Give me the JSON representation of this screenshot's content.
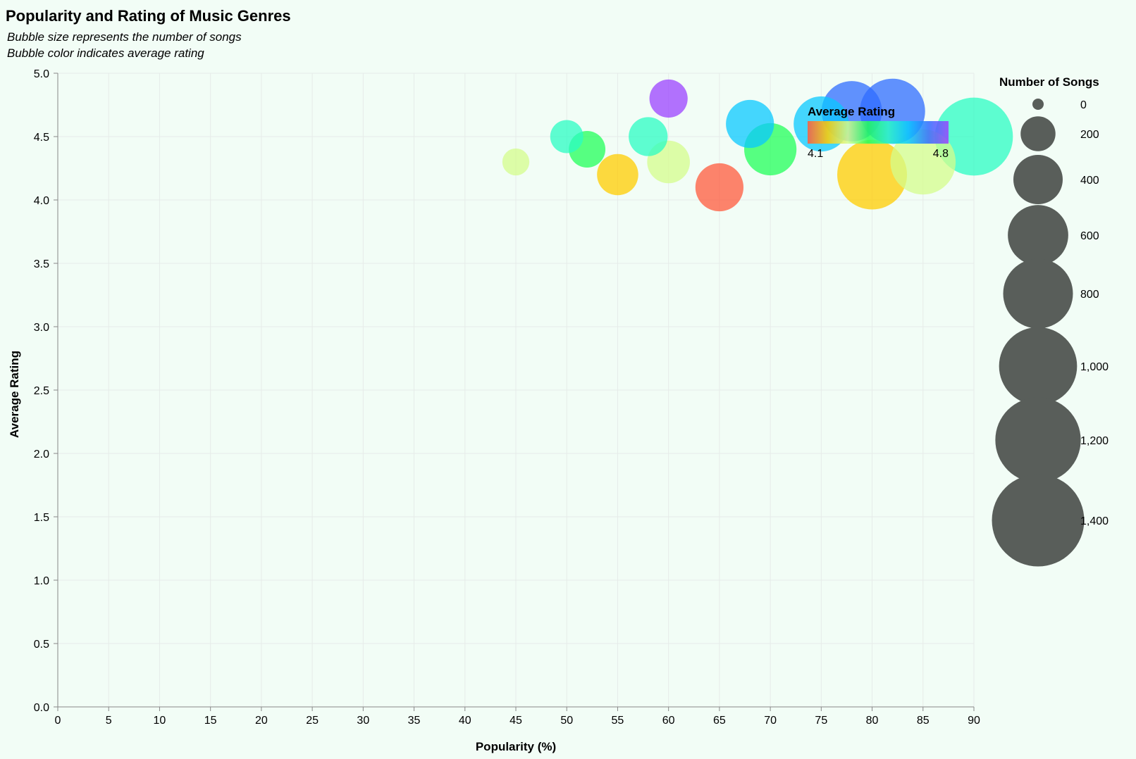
{
  "chart_data": {
    "type": "scatter",
    "title": "Popularity and Rating of Music Genres",
    "subtitle": [
      "Bubble size represents the number of songs",
      "Bubble color indicates average rating"
    ],
    "xlabel": "Popularity (%)",
    "ylabel": "Average Rating",
    "xlim": [
      0,
      90
    ],
    "ylim": [
      0,
      5.0
    ],
    "x_ticks": [
      "0",
      "5",
      "10",
      "15",
      "20",
      "25",
      "30",
      "35",
      "40",
      "45",
      "50",
      "55",
      "60",
      "65",
      "70",
      "75",
      "80",
      "85",
      "90"
    ],
    "y_ticks": [
      "0.0",
      "0.5",
      "1.0",
      "1.5",
      "2.0",
      "2.5",
      "3.0",
      "3.5",
      "4.0",
      "4.5",
      "5.0"
    ],
    "grid": true,
    "points": [
      {
        "x": 90,
        "y": 4.5,
        "songs": 1000
      },
      {
        "x": 85,
        "y": 4.3,
        "songs": 700
      },
      {
        "x": 80,
        "y": 4.2,
        "songs": 800
      },
      {
        "x": 82,
        "y": 4.7,
        "songs": 700
      },
      {
        "x": 78,
        "y": 4.7,
        "songs": 600
      },
      {
        "x": 75,
        "y": 4.6,
        "songs": 500
      },
      {
        "x": 70,
        "y": 4.4,
        "songs": 450
      },
      {
        "x": 68,
        "y": 4.6,
        "songs": 380
      },
      {
        "x": 65,
        "y": 4.1,
        "songs": 380
      },
      {
        "x": 60,
        "y": 4.3,
        "songs": 300
      },
      {
        "x": 60,
        "y": 4.8,
        "songs": 240
      },
      {
        "x": 58,
        "y": 4.5,
        "songs": 250
      },
      {
        "x": 55,
        "y": 4.2,
        "songs": 280
      },
      {
        "x": 52,
        "y": 4.4,
        "songs": 220
      },
      {
        "x": 50,
        "y": 4.5,
        "songs": 180
      },
      {
        "x": 45,
        "y": 4.3,
        "songs": 120
      }
    ],
    "size_legend": {
      "title": "Number of Songs",
      "values": [
        0,
        200,
        400,
        600,
        800,
        1000,
        1200,
        1400
      ],
      "labels": [
        "0",
        "200",
        "400",
        "600",
        "800",
        "1,000",
        "1,200",
        "1,400"
      ]
    },
    "color_legend": {
      "title": "Average Rating",
      "min_label": "4.1",
      "max_label": "4.8",
      "domain": [
        4.1,
        4.8
      ],
      "colors": [
        "#ff5a3c",
        "#ffcc00",
        "#d4fc8c",
        "#21ff5a",
        "#2bfcc3",
        "#0ac8ff",
        "#2f6cff",
        "#9b42ff"
      ],
      "placement": "inside-top-right"
    }
  }
}
